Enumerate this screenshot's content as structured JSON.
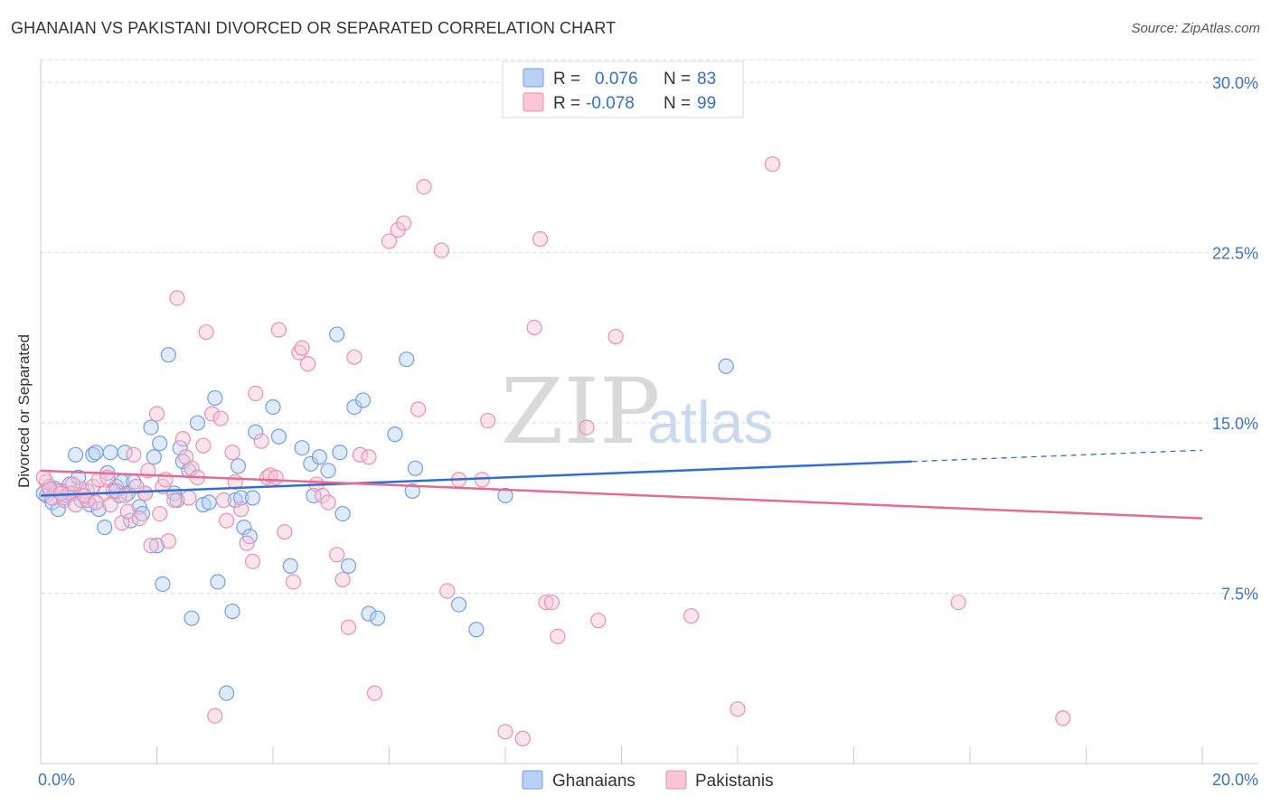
{
  "title": "GHANAIAN VS PAKISTANI DIVORCED OR SEPARATED CORRELATION CHART",
  "source": "Source: ZipAtlas.com",
  "watermark": {
    "zip": "ZIP",
    "atlas": "atlas"
  },
  "colors": {
    "ghanaian": "#6f9fe6",
    "ghanaian_fill": "#b9d1f5",
    "ghanaian_line": "#2f6fd0",
    "pakistani": "#ec8fb0",
    "pakistani_fill": "#f7c6d7",
    "pakistani_line": "#e56a95",
    "grid": "#d9d9d9",
    "tick_text": "#3a72c8"
  },
  "legend_top": {
    "rows": [
      {
        "r_label": "R =",
        "r_value": "0.076",
        "n_label": "N =",
        "n_value": "83"
      },
      {
        "r_label": "R =",
        "r_value": "-0.078",
        "n_label": "N =",
        "n_value": "99"
      }
    ]
  },
  "chart_data": {
    "type": "scatter",
    "title": "GHANAIAN VS PAKISTANI DIVORCED OR SEPARATED CORRELATION CHART",
    "xlabel": "",
    "ylabel": "Divorced or Separated",
    "xlim": [
      0,
      20
    ],
    "ylim": [
      0,
      31
    ],
    "x_tick_labels": [
      "0.0%",
      "20.0%"
    ],
    "y_ticks": [
      7.5,
      15.0,
      22.5,
      30.0
    ],
    "y_tick_labels": [
      "7.5%",
      "15.0%",
      "22.5%",
      "30.0%"
    ],
    "grid": true,
    "legend_position": "bottom",
    "series": [
      {
        "name": "Ghanaians",
        "trend": {
          "x0": 0,
          "y0": 11.8,
          "x1": 15.0,
          "y1": 13.3,
          "dashed_to_x": 20.0,
          "dashed_to_y": 13.8
        },
        "points": [
          [
            0.1,
            11.8
          ],
          [
            0.15,
            12.2
          ],
          [
            0.2,
            11.5
          ],
          [
            0.3,
            11.2
          ],
          [
            0.35,
            12.0
          ],
          [
            0.4,
            11.7
          ],
          [
            0.5,
            12.3
          ],
          [
            0.55,
            11.9
          ],
          [
            0.6,
            13.6
          ],
          [
            0.65,
            12.6
          ],
          [
            0.7,
            11.6
          ],
          [
            0.8,
            12.0
          ],
          [
            0.85,
            11.4
          ],
          [
            0.9,
            13.6
          ],
          [
            0.95,
            13.7
          ],
          [
            1.0,
            11.2
          ],
          [
            1.1,
            10.4
          ],
          [
            1.15,
            12.8
          ],
          [
            1.2,
            13.7
          ],
          [
            1.3,
            12.2
          ],
          [
            1.4,
            12.4
          ],
          [
            1.45,
            13.7
          ],
          [
            1.5,
            11.9
          ],
          [
            1.55,
            10.7
          ],
          [
            1.6,
            12.4
          ],
          [
            1.7,
            11.3
          ],
          [
            1.75,
            11.0
          ],
          [
            1.8,
            11.9
          ],
          [
            1.9,
            14.8
          ],
          [
            1.95,
            13.5
          ],
          [
            2.0,
            9.6
          ],
          [
            2.05,
            14.1
          ],
          [
            2.1,
            7.9
          ],
          [
            2.2,
            18.0
          ],
          [
            2.3,
            11.9
          ],
          [
            2.35,
            11.6
          ],
          [
            2.4,
            13.9
          ],
          [
            2.45,
            13.3
          ],
          [
            2.55,
            12.9
          ],
          [
            2.6,
            6.4
          ],
          [
            2.7,
            15.0
          ],
          [
            2.8,
            11.4
          ],
          [
            2.9,
            11.5
          ],
          [
            3.0,
            16.1
          ],
          [
            3.05,
            8.0
          ],
          [
            3.2,
            3.1
          ],
          [
            3.3,
            6.7
          ],
          [
            3.35,
            11.6
          ],
          [
            3.4,
            13.1
          ],
          [
            3.45,
            11.7
          ],
          [
            3.5,
            10.4
          ],
          [
            3.6,
            10.0
          ],
          [
            3.65,
            11.7
          ],
          [
            3.7,
            14.6
          ],
          [
            4.0,
            15.7
          ],
          [
            4.1,
            14.4
          ],
          [
            4.3,
            8.7
          ],
          [
            4.5,
            13.9
          ],
          [
            4.65,
            13.2
          ],
          [
            4.7,
            11.8
          ],
          [
            4.8,
            13.5
          ],
          [
            4.95,
            12.9
          ],
          [
            5.1,
            18.9
          ],
          [
            5.15,
            13.7
          ],
          [
            5.2,
            11.0
          ],
          [
            5.3,
            8.7
          ],
          [
            5.4,
            15.7
          ],
          [
            5.55,
            16.0
          ],
          [
            5.65,
            6.6
          ],
          [
            5.8,
            6.4
          ],
          [
            6.1,
            14.5
          ],
          [
            6.3,
            17.8
          ],
          [
            6.4,
            12.0
          ],
          [
            6.45,
            13.0
          ],
          [
            7.2,
            7.0
          ],
          [
            7.5,
            5.9
          ],
          [
            8.0,
            11.8
          ],
          [
            11.8,
            17.5
          ],
          [
            0.05,
            11.9
          ],
          [
            0.25,
            12.1
          ],
          [
            0.45,
            11.8
          ],
          [
            1.35,
            11.8
          ],
          [
            1.25,
            12.0
          ]
        ]
      },
      {
        "name": "Pakistanis",
        "trend": {
          "x0": 0,
          "y0": 12.9,
          "x1": 20.0,
          "y1": 10.8
        },
        "points": [
          [
            0.1,
            12.4
          ],
          [
            0.2,
            11.7
          ],
          [
            0.3,
            12.0
          ],
          [
            0.4,
            11.6
          ],
          [
            0.5,
            11.9
          ],
          [
            0.6,
            11.4
          ],
          [
            0.7,
            12.1
          ],
          [
            0.8,
            11.6
          ],
          [
            0.9,
            12.2
          ],
          [
            1.0,
            12.5
          ],
          [
            1.1,
            11.9
          ],
          [
            1.2,
            11.4
          ],
          [
            1.3,
            12.0
          ],
          [
            1.4,
            10.6
          ],
          [
            1.5,
            11.1
          ],
          [
            1.6,
            13.6
          ],
          [
            1.7,
            10.8
          ],
          [
            1.8,
            11.9
          ],
          [
            1.9,
            9.6
          ],
          [
            2.0,
            15.4
          ],
          [
            2.05,
            11.0
          ],
          [
            2.1,
            12.2
          ],
          [
            2.2,
            9.8
          ],
          [
            2.3,
            11.6
          ],
          [
            2.35,
            20.5
          ],
          [
            2.45,
            14.3
          ],
          [
            2.5,
            13.5
          ],
          [
            2.6,
            13.0
          ],
          [
            2.7,
            12.6
          ],
          [
            2.8,
            14.0
          ],
          [
            2.85,
            19.0
          ],
          [
            2.95,
            15.4
          ],
          [
            3.0,
            2.1
          ],
          [
            3.1,
            15.2
          ],
          [
            3.15,
            11.6
          ],
          [
            3.2,
            10.7
          ],
          [
            3.3,
            13.7
          ],
          [
            3.35,
            12.4
          ],
          [
            3.45,
            11.2
          ],
          [
            3.55,
            9.7
          ],
          [
            3.65,
            8.9
          ],
          [
            3.7,
            16.3
          ],
          [
            3.8,
            14.2
          ],
          [
            3.9,
            12.6
          ],
          [
            3.95,
            12.7
          ],
          [
            4.05,
            12.6
          ],
          [
            4.1,
            19.1
          ],
          [
            4.2,
            10.2
          ],
          [
            4.35,
            8.0
          ],
          [
            4.45,
            18.1
          ],
          [
            4.5,
            18.3
          ],
          [
            4.6,
            17.6
          ],
          [
            4.75,
            12.3
          ],
          [
            4.85,
            11.8
          ],
          [
            4.95,
            11.5
          ],
          [
            5.1,
            9.2
          ],
          [
            5.2,
            8.1
          ],
          [
            5.3,
            6.0
          ],
          [
            5.4,
            17.9
          ],
          [
            5.5,
            13.6
          ],
          [
            5.65,
            13.5
          ],
          [
            5.75,
            3.1
          ],
          [
            6.0,
            23.0
          ],
          [
            6.15,
            23.5
          ],
          [
            6.25,
            23.8
          ],
          [
            6.5,
            15.6
          ],
          [
            6.6,
            25.4
          ],
          [
            6.9,
            22.6
          ],
          [
            7.0,
            7.6
          ],
          [
            7.2,
            12.5
          ],
          [
            7.6,
            12.5
          ],
          [
            7.7,
            15.1
          ],
          [
            8.0,
            1.4
          ],
          [
            8.3,
            1.1
          ],
          [
            8.5,
            19.2
          ],
          [
            8.6,
            23.1
          ],
          [
            8.7,
            7.1
          ],
          [
            8.8,
            7.1
          ],
          [
            8.9,
            5.6
          ],
          [
            9.4,
            14.8
          ],
          [
            9.6,
            6.3
          ],
          [
            9.9,
            18.8
          ],
          [
            11.2,
            6.5
          ],
          [
            12.0,
            2.4
          ],
          [
            12.6,
            26.4
          ],
          [
            15.8,
            7.1
          ],
          [
            17.6,
            2.0
          ],
          [
            0.15,
            12.1
          ],
          [
            0.35,
            11.9
          ],
          [
            0.55,
            12.3
          ],
          [
            0.75,
            11.8
          ],
          [
            0.95,
            11.5
          ],
          [
            1.15,
            12.6
          ],
          [
            1.45,
            11.8
          ],
          [
            1.65,
            12.2
          ],
          [
            1.85,
            12.9
          ],
          [
            2.15,
            12.5
          ],
          [
            2.55,
            11.7
          ],
          [
            0.05,
            12.6
          ]
        ]
      }
    ]
  },
  "legend_bottom": {
    "items": [
      "Ghanaians",
      "Pakistanis"
    ]
  }
}
